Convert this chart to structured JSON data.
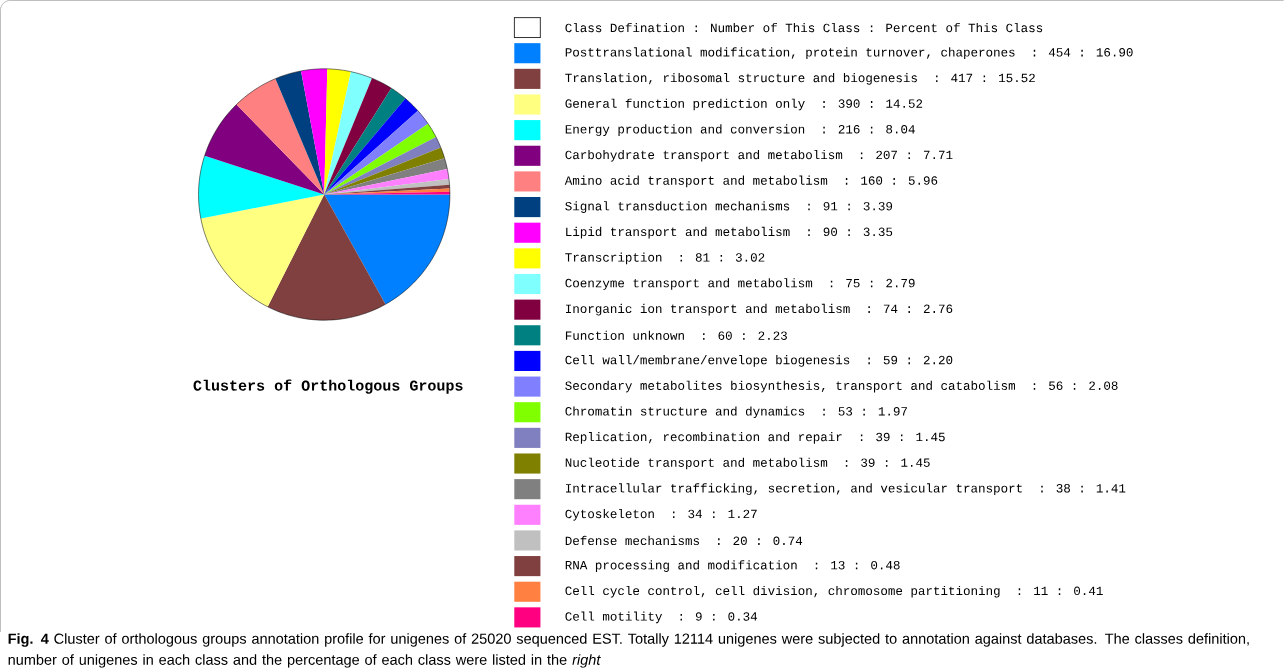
{
  "chart_data": {
    "type": "pie",
    "title": "Clusters of Orthologous Groups",
    "legend_title": "Class Defination : Number of This Class : Percent of This Class",
    "legend": "right",
    "categories": [
      "Posttranslational modification, protein turnover, chaperones ",
      "Translation, ribosomal structure and biogenesis ",
      "General function prediction only ",
      "Energy production and conversion ",
      "Carbohydrate transport and metabolism ",
      "Amino acid transport and metabolism ",
      "Signal transduction mechanisms ",
      "Lipid transport and metabolism ",
      "Transcription ",
      "Coenzyme transport and metabolism ",
      "Inorganic ion transport and metabolism ",
      "Function unknown ",
      "Cell wall/membrane/envelope biogenesis ",
      "Secondary metabolites biosynthesis, transport and catabolism ",
      "Chromatin structure and dynamics ",
      "Replication, recombination and repair ",
      "Nucleotide transport and metabolism ",
      "Intracellular trafficking, secretion, and vesicular transport ",
      "Cytoskeleton ",
      "Defense mechanisms ",
      "RNA processing and modification ",
      "Cell cycle control, cell division, chromosome partitioning ",
      "Cell motility "
    ],
    "values": [
      454,
      417,
      390,
      216,
      207,
      160,
      91,
      90,
      81,
      75,
      74,
      60,
      59,
      56,
      53,
      39,
      39,
      38,
      34,
      20,
      13,
      11,
      9
    ],
    "value_labels": [
      ": 454 : 16.90",
      ": 417 : 15.52",
      ": 390 : 14.52",
      ": 216 : 8.04",
      ": 207 : 7.71",
      ": 160 : 5.96",
      ": 91 : 3.39",
      ": 90 : 3.35",
      ": 81 : 3.02",
      ": 75 : 2.79",
      ": 74 : 2.76",
      ": 60 : 2.23",
      ": 59 : 2.20",
      ": 56 : 2.08",
      ": 53 : 1.97",
      ": 39 : 1.45",
      ": 39 : 1.45",
      ": 38 : 1.41",
      ": 34 : 1.27",
      ": 20 : 0.74",
      ": 13 : 0.48",
      ": 11 : 0.41",
      ": 9 : 0.34"
    ],
    "colors": [
      "#0080ff",
      "#804040",
      "#ffff80",
      "#00ffff",
      "#800080",
      "#ff8080",
      "#004080",
      "#ff00ff",
      "#ffff00",
      "#80ffff",
      "#800040",
      "#008080",
      "#0000ff",
      "#8080ff",
      "#80ff00",
      "#8080c0",
      "#808000",
      "#808080",
      "#ff80ff",
      "#c0c0c0",
      "#804040",
      "#ff8040",
      "#ff0080"
    ],
    "annotations": [
      "**Fig. 4** Cluster of orthologous groups annotation profile for unigenes of 25020 sequenced EST. Totally 12114 unigenes were subjected to annotation against databases. The classes definition, number of unigenes in each class and the percentage of each class were listed in the *right*"
    ]
  }
}
